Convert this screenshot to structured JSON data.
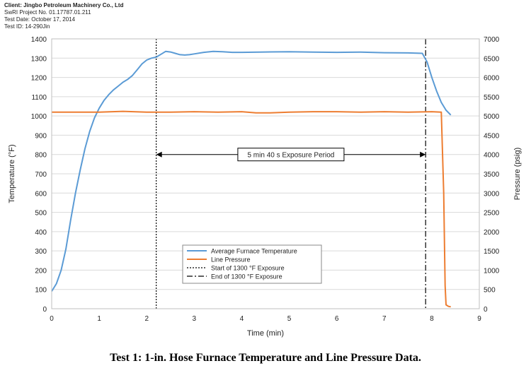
{
  "header": {
    "client": "Client: Jingbo Petroleum Machinery Co., Ltd",
    "project": "SwRI Project No. 01.17787.01.211",
    "test_date": "Test Date: October 17, 2014",
    "test_id": "Test ID: 14-290Jin"
  },
  "caption": "Test 1: 1-in. Hose Furnace Temperature and Line Pressure Data.",
  "chart_data": {
    "type": "line",
    "xlabel": "Time (min)",
    "ylabel": "Temperature (°F)",
    "y2label": "Pressure (psig)",
    "xlim": [
      0,
      9
    ],
    "ylim": [
      0,
      1400
    ],
    "y2lim": [
      0,
      7000
    ],
    "xticks": [
      "0",
      "1",
      "2",
      "3",
      "4",
      "5",
      "6",
      "7",
      "8",
      "9"
    ],
    "yticks": [
      "0",
      "100",
      "200",
      "300",
      "400",
      "500",
      "600",
      "700",
      "800",
      "900",
      "1000",
      "1100",
      "1200",
      "1300",
      "1400"
    ],
    "y2ticks": [
      "0",
      "500",
      "1000",
      "1500",
      "2000",
      "2500",
      "3000",
      "3500",
      "4000",
      "4500",
      "5000",
      "5500",
      "6000",
      "6500",
      "7000"
    ],
    "grid": "horizontal",
    "legend_position": "bottom-center",
    "series": [
      {
        "name": "Average Furnace Temperature",
        "axis": "left",
        "color": "#5b9bd5",
        "x": [
          0,
          0.1,
          0.2,
          0.3,
          0.4,
          0.5,
          0.6,
          0.7,
          0.8,
          0.9,
          1.0,
          1.1,
          1.2,
          1.3,
          1.4,
          1.5,
          1.6,
          1.7,
          1.8,
          1.9,
          2.0,
          2.1,
          2.2,
          2.3,
          2.4,
          2.5,
          2.6,
          2.7,
          2.8,
          2.9,
          3.0,
          3.2,
          3.4,
          3.6,
          3.8,
          4.0,
          4.5,
          5.0,
          5.5,
          6.0,
          6.5,
          7.0,
          7.5,
          7.8,
          7.9,
          8.0,
          8.1,
          8.2,
          8.3,
          8.4
        ],
        "values": [
          90,
          130,
          200,
          310,
          460,
          600,
          720,
          830,
          920,
          990,
          1040,
          1080,
          1110,
          1135,
          1155,
          1175,
          1190,
          1210,
          1240,
          1270,
          1290,
          1300,
          1305,
          1320,
          1335,
          1332,
          1325,
          1318,
          1316,
          1318,
          1322,
          1330,
          1335,
          1333,
          1330,
          1330,
          1332,
          1333,
          1331,
          1330,
          1331,
          1328,
          1327,
          1325,
          1280,
          1200,
          1130,
          1070,
          1030,
          1005
        ]
      },
      {
        "name": "Line Pressure",
        "axis": "right",
        "color": "#ed7d31",
        "x": [
          0,
          0.5,
          1.0,
          1.5,
          2.0,
          2.5,
          3.0,
          3.5,
          4.0,
          4.3,
          4.6,
          5.0,
          5.5,
          6.0,
          6.5,
          7.0,
          7.5,
          8.0,
          8.2,
          8.25,
          8.28,
          8.3,
          8.35,
          8.4
        ],
        "values": [
          5100,
          5100,
          5100,
          5120,
          5100,
          5100,
          5110,
          5100,
          5110,
          5080,
          5080,
          5100,
          5110,
          5110,
          5100,
          5110,
          5100,
          5110,
          5100,
          3000,
          600,
          100,
          60,
          50
        ]
      }
    ],
    "markers": [
      {
        "name": "Start of 1300 °F Exposure",
        "x": 2.2,
        "style": "dotted"
      },
      {
        "name": "End of 1300 °F Exposure",
        "x": 7.87,
        "style": "dashdot"
      }
    ],
    "annotation": {
      "text": "5 min 40 s Exposure Period",
      "x_start": 2.2,
      "x_end": 7.87,
      "y": 800
    }
  }
}
